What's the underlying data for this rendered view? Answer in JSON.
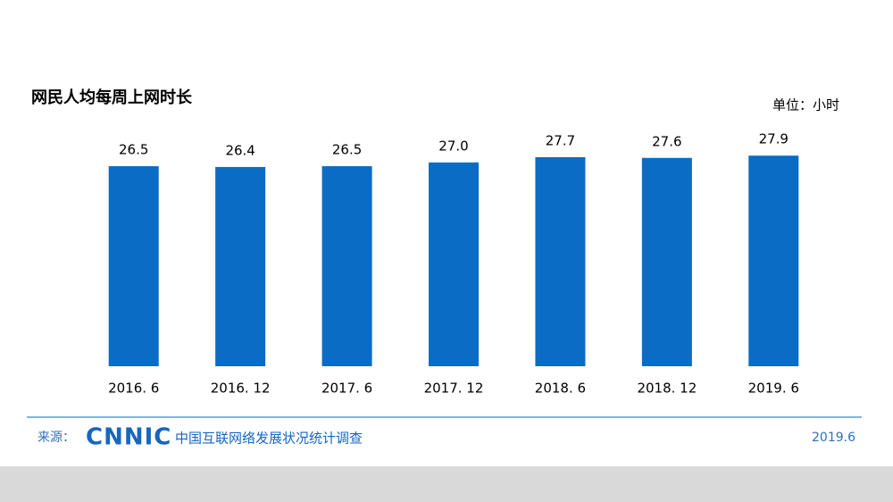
{
  "chart_data": {
    "type": "bar",
    "title": "网民人均每周上网时长",
    "unit_label": "单位：小时",
    "categories": [
      "2016. 6",
      "2016. 12",
      "2017. 6",
      "2017. 12",
      "2018. 6",
      "2018. 12",
      "2019. 6"
    ],
    "values": [
      26.5,
      26.4,
      26.5,
      27.0,
      27.7,
      27.6,
      27.9
    ],
    "value_labels": [
      "26.5",
      "26.4",
      "26.5",
      "27.0",
      "27.7",
      "27.6",
      "27.9"
    ],
    "color": "#0a6cc4",
    "ylim": [
      0,
      30
    ],
    "source_prefix": "来源：",
    "source_logo": "CNNIC",
    "source_name": "中国互联网络发展状况统计调查",
    "date": "2019.6"
  }
}
